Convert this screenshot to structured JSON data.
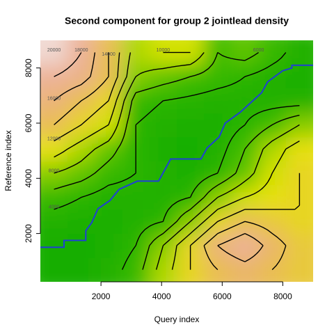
{
  "chart_data": {
    "type": "contour",
    "title": "Second component for group 2 jointlead density",
    "x_label": "Query index",
    "y_label": "Reference index",
    "xlim": [
      0,
      9000
    ],
    "ylim": [
      250,
      9000
    ],
    "xticks": [
      2000,
      4000,
      6000,
      8000
    ],
    "yticks": [
      2000,
      4000,
      6000,
      8000
    ],
    "x": [
      450,
      1350,
      2250,
      3150,
      4050,
      4950,
      5850,
      6750,
      7650,
      8550
    ],
    "y": [
      687.5,
      1562.5,
      2437.5,
      3312.5,
      4187.5,
      5062.5,
      5937.5,
      6812.5,
      7687.5,
      8562.5
    ],
    "z": [
      [
        2000,
        2000,
        3000,
        5000,
        9000,
        12000,
        14000,
        15000,
        14000,
        13000
      ],
      [
        2000,
        2000,
        2500,
        4000,
        8000,
        12000,
        16000,
        18000,
        15000,
        13000
      ],
      [
        3000,
        2500,
        2500,
        3000,
        4000,
        8000,
        12000,
        14000,
        13000,
        12000
      ],
      [
        5000,
        4000,
        3000,
        3000,
        3000,
        4000,
        8000,
        10000,
        11000,
        12000
      ],
      [
        8000,
        7000,
        5000,
        4000,
        3000,
        2500,
        4000,
        7000,
        10000,
        12000
      ],
      [
        11000,
        9000,
        7000,
        4000,
        2500,
        2000,
        3000,
        6000,
        9000,
        11000
      ],
      [
        14000,
        12000,
        10000,
        4000,
        3000,
        2500,
        2500,
        4000,
        6000,
        8000
      ],
      [
        16000,
        14000,
        12000,
        5000,
        4000,
        3500,
        3000,
        3000,
        3000,
        3000
      ],
      [
        18000,
        17000,
        14000,
        8000,
        7000,
        6000,
        5000,
        4000,
        3000,
        2500
      ],
      [
        20000,
        18000,
        14000,
        9000,
        10000,
        10000,
        6000,
        7000,
        5000,
        3000
      ]
    ],
    "contour_levels": [
      2000,
      4000,
      6000,
      8000,
      10000,
      12000,
      14000,
      16000,
      18000,
      20000
    ],
    "contour_color": "#000000",
    "path": {
      "color": "#1f3fd6",
      "x": [
        0,
        780,
        780,
        1500,
        1500,
        1700,
        1900,
        2300,
        2600,
        3200,
        3900,
        4100,
        4300,
        5300,
        5500,
        5900,
        6100,
        6600,
        7000,
        7300,
        7500,
        8000,
        8300,
        8300,
        9000
      ],
      "y": [
        1500,
        1500,
        1750,
        1750,
        2100,
        2400,
        2900,
        3200,
        3600,
        3900,
        3900,
        4300,
        4700,
        4700,
        5100,
        5500,
        6000,
        6400,
        6800,
        7100,
        7500,
        7900,
        8000,
        8100,
        8100
      ]
    }
  }
}
